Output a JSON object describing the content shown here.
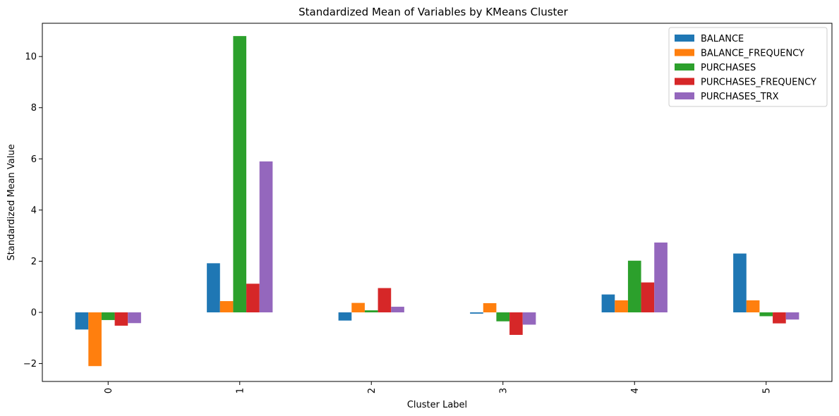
{
  "chart_data": {
    "type": "bar",
    "title": "Standardized Mean of Variables by KMeans Cluster",
    "xlabel": "Cluster Label",
    "ylabel": "Standardized Mean Value",
    "categories": [
      "0",
      "1",
      "2",
      "3",
      "4",
      "5"
    ],
    "ylim": [
      -2.7,
      11.3
    ],
    "yticks": [
      -2,
      0,
      2,
      4,
      6,
      8,
      10
    ],
    "ytick_labels": [
      "−2",
      "0",
      "2",
      "4",
      "6",
      "8",
      "10"
    ],
    "grid": false,
    "legend_position": "top-right",
    "series": [
      {
        "name": "BALANCE",
        "color": "#1f77b4",
        "values": [
          -0.67,
          1.92,
          -0.32,
          -0.05,
          0.7,
          2.3
        ]
      },
      {
        "name": "BALANCE_FREQUENCY",
        "color": "#ff7f0e",
        "values": [
          -2.1,
          0.44,
          0.37,
          0.36,
          0.47,
          0.47
        ]
      },
      {
        "name": "PURCHASES",
        "color": "#2ca02c",
        "values": [
          -0.3,
          10.8,
          0.08,
          -0.35,
          2.02,
          -0.15
        ]
      },
      {
        "name": "PURCHASES_FREQUENCY",
        "color": "#d62728",
        "values": [
          -0.52,
          1.12,
          0.95,
          -0.88,
          1.17,
          -0.43
        ]
      },
      {
        "name": "PURCHASES_TRX",
        "color": "#9467bd",
        "values": [
          -0.42,
          5.9,
          0.22,
          -0.48,
          2.73,
          -0.28
        ]
      }
    ]
  }
}
